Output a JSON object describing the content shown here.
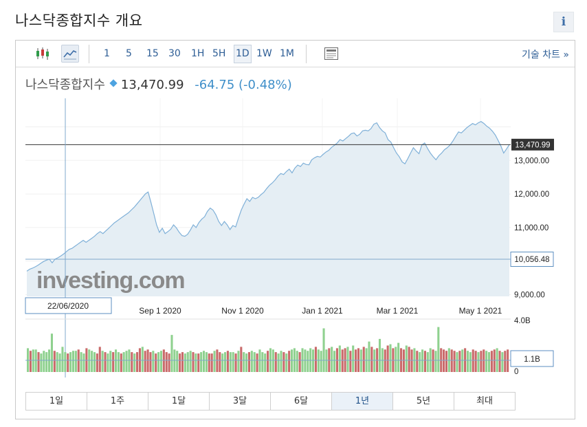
{
  "page": {
    "title": "나스닥종합지수 개요",
    "info_label": "i"
  },
  "toolbar": {
    "intervals": [
      "1",
      "5",
      "15",
      "30",
      "1H",
      "5H",
      "1D",
      "1W",
      "1M"
    ],
    "active_interval": "1D",
    "technical_chart_label": "기술 차트 »",
    "icons": [
      "candlestick-icon",
      "line-chart-icon",
      "newspaper-icon"
    ]
  },
  "quote": {
    "name": "나스닥종합지수",
    "price": "13,470.99",
    "change": "-64.75",
    "change_pct": "(-0.48%)"
  },
  "colors": {
    "line": "#7fb0d8",
    "area": "#e5eef4",
    "up_volume": "#8fd18f",
    "down_volume": "#c96a6a",
    "crosshair": "#7fa8cc"
  },
  "chart_data": {
    "type": "area",
    "title": "",
    "xlabel": "",
    "ylabel": "",
    "x_ticks": [
      "Sep 1 2020",
      "Nov 1 2020",
      "Jan 1 2021",
      "Mar 1 2021",
      "May 1 2021"
    ],
    "y_ticks": [
      "13,000.00",
      "12,000.00",
      "11,000.00",
      "9,000.00"
    ],
    "ylim": [
      8950,
      14850
    ],
    "current_value_label": "13,470.99",
    "current_value": 13470.99,
    "crosshair": {
      "date_label": "22/06/2020",
      "value_label": "10,056.48",
      "value": 10056.48
    },
    "watermark": "investing.com",
    "series": [
      {
        "values": [
          9700,
          9760,
          9790,
          9830,
          9880,
          9940,
          9990,
          10030,
          10056,
          9950,
          10060,
          10100,
          10150,
          10210,
          10280,
          10350,
          10380,
          10440,
          10500,
          10560,
          10620,
          10560,
          10620,
          10680,
          10740,
          10820,
          10880,
          10820,
          10900,
          10980,
          11060,
          11140,
          11200,
          11260,
          11320,
          11380,
          11440,
          11520,
          11600,
          11700,
          11800,
          11900,
          12000,
          12060,
          11750,
          11420,
          11080,
          10860,
          10980,
          10820,
          10880,
          10950,
          11080,
          10990,
          10860,
          10760,
          10740,
          10800,
          10930,
          11080,
          11000,
          11150,
          11250,
          11320,
          11480,
          11580,
          11520,
          11380,
          11180,
          11060,
          11180,
          11080,
          10940,
          11060,
          11020,
          11280,
          11520,
          11700,
          11860,
          11780,
          11900,
          11860,
          11900,
          11980,
          12050,
          12160,
          12260,
          12330,
          12420,
          12530,
          12610,
          12580,
          12670,
          12740,
          12630,
          12770,
          12860,
          12820,
          12920,
          12880,
          12870,
          13020,
          13080,
          13120,
          13100,
          13180,
          13250,
          13300,
          13390,
          13450,
          13520,
          13620,
          13580,
          13650,
          13720,
          13800,
          13820,
          13730,
          13780,
          13880,
          13900,
          13880,
          13950,
          14080,
          14120,
          13980,
          13880,
          13820,
          13620,
          13550,
          13380,
          13220,
          13110,
          12960,
          12900,
          13050,
          13220,
          13380,
          13280,
          13200,
          13460,
          13520,
          13360,
          13220,
          13110,
          13020,
          13140,
          13220,
          13320,
          13380,
          13460,
          13580,
          13720,
          13850,
          13820,
          13900,
          13980,
          14040,
          14100,
          14060,
          14120,
          14160,
          14100,
          14020,
          13960,
          13870,
          13760,
          13600,
          13430,
          13220,
          13340,
          13470.99
        ]
      }
    ],
    "volume": {
      "axis_labels": [
        "4.0B",
        "0"
      ],
      "crosshair_label": "1.1B",
      "ylim": [
        0,
        4.0
      ],
      "values": [
        1.8,
        1.6,
        1.7,
        1.7,
        1.5,
        1.4,
        1.6,
        1.5,
        1.7,
        2.9,
        1.6,
        1.5,
        1.4,
        1.9,
        1.5,
        1.4,
        1.5,
        1.6,
        1.6,
        1.7,
        1.5,
        1.4,
        1.8,
        1.7,
        1.6,
        1.5,
        1.4,
        1.9,
        1.6,
        1.5,
        1.4,
        1.6,
        1.5,
        1.7,
        1.5,
        1.4,
        1.5,
        1.6,
        1.7,
        1.5,
        1.4,
        1.5,
        1.8,
        1.9,
        1.6,
        1.7,
        1.5,
        1.6,
        1.4,
        1.5,
        1.6,
        1.7,
        1.5,
        1.4,
        2.8,
        1.7,
        1.6,
        1.4,
        1.5,
        1.4,
        1.5,
        1.6,
        1.5,
        1.4,
        1.4,
        1.5,
        1.6,
        1.5,
        1.4,
        1.4,
        1.6,
        1.7,
        1.5,
        1.4,
        1.5,
        1.6,
        1.5,
        1.5,
        1.4,
        1.6,
        1.9,
        1.5,
        1.4,
        1.5,
        1.6,
        1.5,
        1.4,
        1.7,
        1.5,
        1.4,
        1.6,
        1.8,
        1.7,
        1.5,
        1.4,
        1.6,
        1.5,
        1.4,
        1.6,
        1.7,
        1.8,
        1.6,
        1.5,
        1.8,
        1.7,
        1.6,
        1.8,
        1.7,
        1.9,
        1.7,
        1.6,
        3.3,
        1.7,
        1.8,
        1.9,
        1.6,
        1.8,
        2.0,
        1.7,
        1.8,
        1.9,
        1.6,
        2.0,
        1.7,
        1.8,
        1.7,
        1.9,
        1.8,
        2.3,
        1.9,
        1.7,
        1.8,
        2.5,
        1.8,
        1.7,
        2.0,
        2.1,
        1.8,
        1.9,
        2.2,
        1.8,
        1.7,
        2.0,
        1.9,
        1.7,
        1.8,
        1.6,
        1.5,
        1.7,
        1.6,
        1.5,
        1.8,
        1.7,
        1.6,
        3.4,
        1.8,
        1.7,
        1.6,
        1.8,
        1.7,
        1.6,
        1.5,
        1.6,
        1.7,
        1.8,
        1.6,
        1.5,
        1.7,
        1.6,
        1.5,
        1.6,
        1.7,
        1.6,
        1.5,
        1.6,
        1.7,
        1.8,
        1.6,
        1.5,
        1.6,
        1.7
      ],
      "up": [
        1,
        0,
        1,
        1,
        0,
        1,
        1,
        1,
        1,
        1,
        0,
        1,
        1,
        1,
        1,
        0,
        1,
        1,
        1,
        0,
        1,
        1,
        0,
        1,
        1,
        1,
        0,
        0,
        1,
        0,
        1,
        1,
        0,
        1,
        1,
        0,
        1,
        1,
        1,
        0,
        1,
        0,
        0,
        1,
        0,
        0,
        0,
        1,
        0,
        1,
        1,
        0,
        0,
        0,
        1,
        1,
        1,
        0,
        0,
        1,
        1,
        1,
        0,
        1,
        0,
        1,
        1,
        1,
        0,
        0,
        1,
        0,
        0,
        1,
        1,
        0,
        1,
        1,
        0,
        1,
        0,
        1,
        1,
        0,
        1,
        1,
        0,
        1,
        1,
        1,
        0,
        1,
        1,
        0,
        1,
        1,
        0,
        1,
        0,
        1,
        1,
        1,
        0,
        1,
        1,
        1,
        1,
        1,
        0,
        1,
        1,
        1,
        1,
        0,
        1,
        1,
        0,
        1,
        0,
        0,
        1,
        0,
        1,
        0,
        0,
        1,
        0,
        1,
        1,
        0,
        1,
        0,
        1,
        1,
        0,
        0,
        1,
        0,
        1,
        1,
        0,
        0,
        1,
        0,
        0,
        1,
        0,
        1,
        1,
        0,
        1,
        1,
        0,
        1,
        1,
        0,
        0,
        0,
        1,
        0,
        0,
        1,
        0,
        1,
        0,
        1,
        1,
        0,
        0,
        1,
        0,
        0,
        1,
        1,
        0,
        0,
        1,
        0,
        1,
        0
      ]
    }
  },
  "periods": [
    "1일",
    "1주",
    "1달",
    "3달",
    "6달",
    "1년",
    "5년",
    "최대"
  ],
  "active_period": "1년"
}
